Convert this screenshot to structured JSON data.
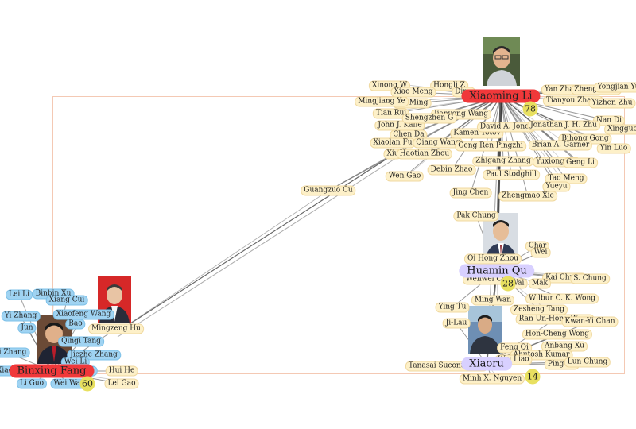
{
  "hubs": [
    {
      "name": "Xiaoming Li",
      "count": "78",
      "style": "red"
    },
    {
      "name": "Huamin Qu",
      "count": "28",
      "style": "lav"
    },
    {
      "name": "Xiaoru",
      "count": "14",
      "style": "lav"
    },
    {
      "name": "Binxing Fang",
      "count": "60",
      "style": "red"
    }
  ],
  "yellow_labels": [
    "Xinong W",
    "Hongli Z",
    "Xiao Meng",
    "Ding",
    "Lei Ming",
    "Mingjiang Ye",
    "Tian Rui",
    "Jianyong Wang",
    "John J. Kane",
    "Shengzhen G",
    "Chen Da",
    "Xiaolan Fu",
    "Qiang Wang",
    "Xiu",
    "Haotian Zhou",
    "Wen Gao",
    "Debin Zhao",
    "Jing Chen",
    "Guangzuo Cu",
    "Zhengmao Xie",
    "Yan Zhang",
    "Zheng Chen",
    "Yongjian Yu",
    "Tianyou Zhang",
    "Yizhen Zhu",
    "Nan Di",
    "Xingguo",
    "Bihong Gong",
    "Yin Luo",
    "Kamen Yotov",
    "David A. Jones",
    "Jonathan J. H. Zhu",
    "Geng Ren Pingzhi",
    "Brian A. Garner",
    "Zhigang Zhang",
    "Paul Stodghill",
    "Yuxiong He",
    "Weili",
    "Geng Li",
    "Jin",
    "Tao Meng",
    "Yueyu",
    "Pak Chung",
    "Char",
    "Qi Hong Zhou",
    "Wei",
    "Wenwei Cui",
    "Kai Chung",
    "S. Chung",
    "Wai",
    "Mak",
    "Ming Wan",
    "Wilbur C. K. Wong",
    "Ying Tu",
    "Zesheng Tang",
    "Ran Un-Hong Wong",
    "Kwan-Yi Chan",
    "Hon-Cheng Wong",
    "Anbang Xu",
    "Ji-Lau",
    "Feng Qi",
    "Ahutosh Kumar",
    "Wei Liao",
    "Ping Gu",
    "Lun Chung",
    "Tanasai Sucontphunt",
    "Minh X. Nguyen",
    "Mingzeng Hu",
    "Hui He",
    "Lei Gao"
  ],
  "blue_labels": [
    "Lei Li",
    "Binbin Xu",
    "Xiang Cui",
    "Yi Zhang",
    "Jun",
    "Xiaofeng Wang",
    "Bao",
    "Qingi Tang",
    "Jiezhe Zhang",
    "Zhi Zhang",
    "Wei Li",
    "Xiao-ch",
    "Hui",
    "Li Guo",
    "Wei Wang"
  ],
  "icons": {
    "portrait": "person-photo-icon"
  },
  "colors": {
    "red_hub": "#f0383a",
    "lavender_hub": "#d8d0ff",
    "yellow_node": "#fdf0c8",
    "blue_node": "#9fd3f2",
    "badge": "#e8e060",
    "frame": "#f4c9b4"
  }
}
